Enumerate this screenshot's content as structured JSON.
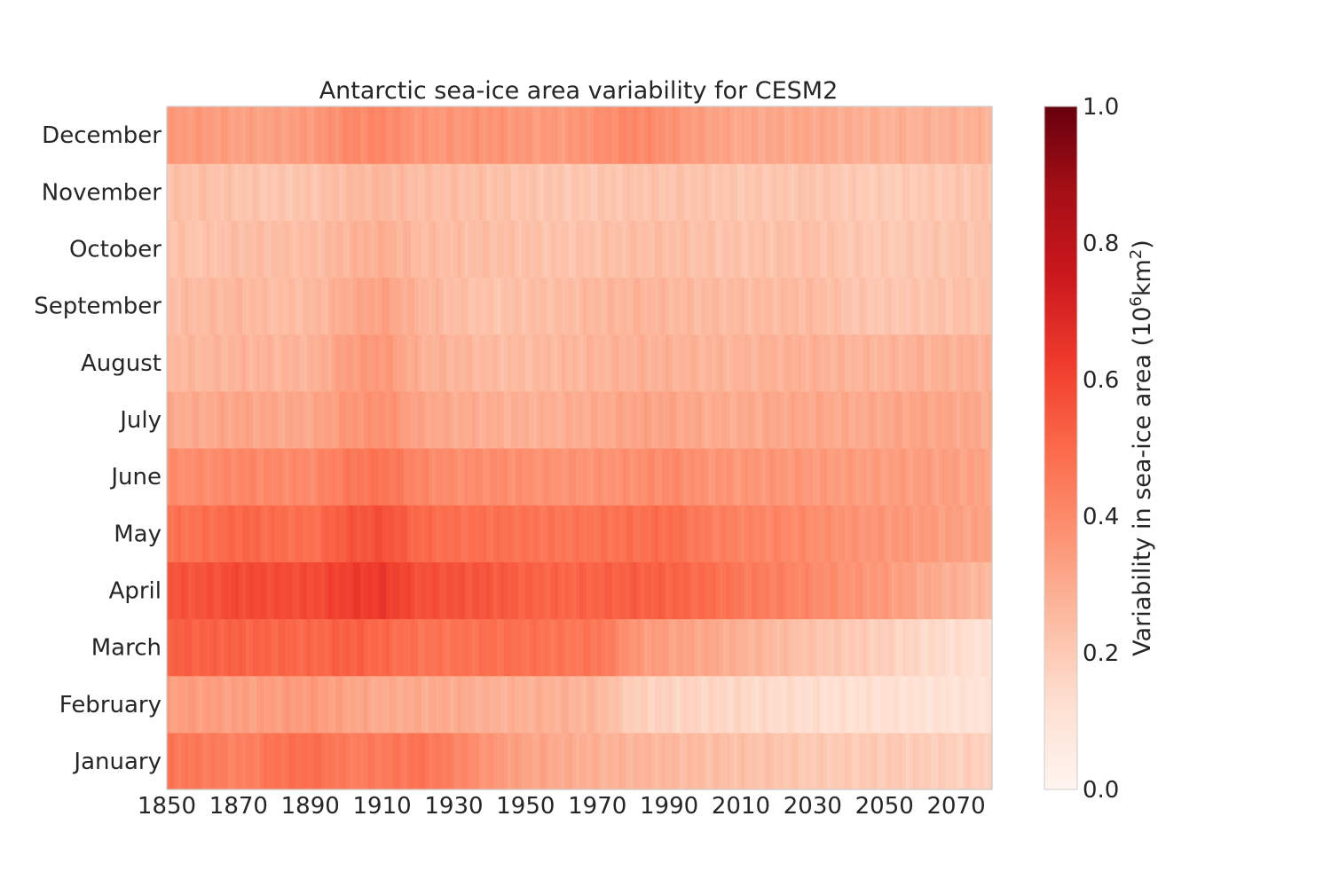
{
  "chart_data": {
    "type": "heatmap",
    "title": "Antarctic sea-ice area variability for CESM2",
    "xlabel": "",
    "ylabel": "",
    "x_start": 1850,
    "x_end": 2080,
    "x_ticks": [
      1850,
      1870,
      1890,
      1910,
      1930,
      1950,
      1970,
      1990,
      2010,
      2030,
      2050,
      2070
    ],
    "x_tick_labels": [
      "1850",
      "1870",
      "1890",
      "1910",
      "1930",
      "1950",
      "1970",
      "1990",
      "2010",
      "2030",
      "2050",
      "2070"
    ],
    "rows": [
      "January",
      "February",
      "March",
      "April",
      "May",
      "June",
      "July",
      "August",
      "September",
      "October",
      "November",
      "December"
    ],
    "colorbar": {
      "label_prefix": "Variability in sea-ice area (10",
      "label_sup1": "6",
      "label_mid": "km",
      "label_sup2": "2",
      "label_suffix": ")",
      "min": 0.0,
      "max": 1.0,
      "ticks": [
        "0.0",
        "0.2",
        "0.4",
        "0.6",
        "0.8",
        "1.0"
      ],
      "colormap": "Reds"
    },
    "grid": false,
    "series": [
      {
        "row": "January",
        "decade_values": [
          0.46,
          0.45,
          0.42,
          0.47,
          0.49,
          0.44,
          0.45,
          0.47,
          0.42,
          0.36,
          0.32,
          0.3,
          0.28,
          0.27,
          0.26,
          0.24,
          0.23,
          0.22,
          0.2,
          0.2,
          0.2,
          0.19,
          0.18,
          0.18
        ]
      },
      {
        "row": "February",
        "decade_values": [
          0.34,
          0.34,
          0.33,
          0.34,
          0.35,
          0.32,
          0.3,
          0.3,
          0.3,
          0.28,
          0.28,
          0.28,
          0.26,
          0.18,
          0.17,
          0.16,
          0.15,
          0.14,
          0.13,
          0.12,
          0.12,
          0.11,
          0.11,
          0.1
        ]
      },
      {
        "row": "March",
        "decade_values": [
          0.53,
          0.52,
          0.52,
          0.51,
          0.5,
          0.53,
          0.5,
          0.47,
          0.47,
          0.48,
          0.48,
          0.46,
          0.46,
          0.36,
          0.33,
          0.31,
          0.28,
          0.25,
          0.22,
          0.2,
          0.18,
          0.15,
          0.13,
          0.11
        ]
      },
      {
        "row": "April",
        "decade_values": [
          0.56,
          0.56,
          0.59,
          0.58,
          0.58,
          0.62,
          0.63,
          0.57,
          0.56,
          0.55,
          0.52,
          0.51,
          0.52,
          0.53,
          0.52,
          0.49,
          0.45,
          0.43,
          0.4,
          0.37,
          0.35,
          0.31,
          0.28,
          0.25
        ]
      },
      {
        "row": "May",
        "decade_values": [
          0.47,
          0.48,
          0.51,
          0.49,
          0.48,
          0.55,
          0.57,
          0.5,
          0.48,
          0.48,
          0.47,
          0.46,
          0.47,
          0.48,
          0.49,
          0.44,
          0.42,
          0.41,
          0.39,
          0.37,
          0.36,
          0.35,
          0.33,
          0.32
        ]
      },
      {
        "row": "June",
        "decade_values": [
          0.39,
          0.39,
          0.41,
          0.4,
          0.4,
          0.45,
          0.47,
          0.41,
          0.39,
          0.39,
          0.38,
          0.37,
          0.37,
          0.38,
          0.4,
          0.37,
          0.36,
          0.36,
          0.35,
          0.34,
          0.34,
          0.34,
          0.33,
          0.32
        ]
      },
      {
        "row": "July",
        "decade_values": [
          0.3,
          0.3,
          0.32,
          0.31,
          0.31,
          0.36,
          0.38,
          0.32,
          0.3,
          0.29,
          0.28,
          0.29,
          0.3,
          0.32,
          0.32,
          0.3,
          0.3,
          0.31,
          0.31,
          0.3,
          0.31,
          0.32,
          0.31,
          0.3
        ]
      },
      {
        "row": "August",
        "decade_values": [
          0.26,
          0.26,
          0.27,
          0.27,
          0.27,
          0.34,
          0.36,
          0.28,
          0.27,
          0.25,
          0.25,
          0.26,
          0.27,
          0.28,
          0.28,
          0.27,
          0.27,
          0.28,
          0.28,
          0.27,
          0.27,
          0.28,
          0.28,
          0.28
        ]
      },
      {
        "row": "September",
        "decade_values": [
          0.24,
          0.25,
          0.26,
          0.24,
          0.25,
          0.3,
          0.33,
          0.27,
          0.24,
          0.22,
          0.24,
          0.24,
          0.26,
          0.27,
          0.26,
          0.25,
          0.25,
          0.25,
          0.25,
          0.22,
          0.21,
          0.22,
          0.23,
          0.23
        ]
      },
      {
        "row": "October",
        "decade_values": [
          0.23,
          0.22,
          0.24,
          0.24,
          0.24,
          0.27,
          0.29,
          0.25,
          0.24,
          0.24,
          0.23,
          0.22,
          0.23,
          0.24,
          0.24,
          0.23,
          0.22,
          0.23,
          0.23,
          0.21,
          0.2,
          0.21,
          0.22,
          0.22
        ]
      },
      {
        "row": "November",
        "decade_values": [
          0.23,
          0.23,
          0.22,
          0.21,
          0.22,
          0.25,
          0.26,
          0.24,
          0.24,
          0.23,
          0.22,
          0.21,
          0.21,
          0.22,
          0.22,
          0.22,
          0.21,
          0.21,
          0.22,
          0.2,
          0.19,
          0.2,
          0.21,
          0.22
        ]
      },
      {
        "row": "December",
        "decade_values": [
          0.35,
          0.35,
          0.33,
          0.33,
          0.35,
          0.4,
          0.41,
          0.36,
          0.36,
          0.37,
          0.35,
          0.35,
          0.38,
          0.41,
          0.37,
          0.33,
          0.31,
          0.31,
          0.31,
          0.29,
          0.28,
          0.28,
          0.28,
          0.28
        ]
      }
    ]
  }
}
